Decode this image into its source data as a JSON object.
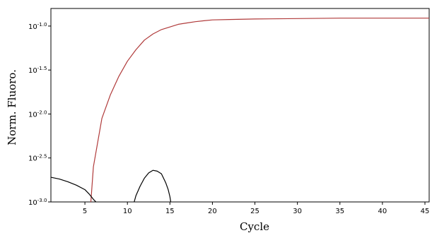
{
  "chart_data": {
    "type": "line",
    "title": "",
    "xlabel": "Cycle",
    "ylabel": "Norm. Fluoro.",
    "xlim": [
      1,
      45.5
    ],
    "ylim": [
      -3.0,
      -0.8
    ],
    "y_scale": "log10",
    "x_ticks": [
      5,
      10,
      15,
      20,
      25,
      30,
      35,
      40,
      45
    ],
    "y_ticks": [
      {
        "value": -1.0,
        "base": "10",
        "exp": "-1.0"
      },
      {
        "value": -1.5,
        "base": "10",
        "exp": "-1.5"
      },
      {
        "value": -2.0,
        "base": "10",
        "exp": "-2.0"
      },
      {
        "value": -2.5,
        "base": "10",
        "exp": "-2.5"
      },
      {
        "value": -3.0,
        "base": "10",
        "exp": "-3.0"
      }
    ],
    "grid": false,
    "legend": false,
    "series": [
      {
        "color": "#b03a3a",
        "points": [
          [
            5.7,
            -3.0
          ],
          [
            6,
            -2.6
          ],
          [
            7,
            -2.05
          ],
          [
            8,
            -1.78
          ],
          [
            9,
            -1.57
          ],
          [
            10,
            -1.4
          ],
          [
            11,
            -1.27
          ],
          [
            12,
            -1.16
          ],
          [
            13,
            -1.09
          ],
          [
            14,
            -1.04
          ],
          [
            15,
            -1.01
          ],
          [
            16,
            -0.98
          ],
          [
            17,
            -0.965
          ],
          [
            18,
            -0.95
          ],
          [
            19,
            -0.94
          ],
          [
            20,
            -0.93
          ],
          [
            22,
            -0.925
          ],
          [
            25,
            -0.92
          ],
          [
            30,
            -0.915
          ],
          [
            35,
            -0.91
          ],
          [
            40,
            -0.91
          ],
          [
            45.5,
            -0.91
          ]
        ]
      },
      {
        "color": "#000000",
        "points": [
          [
            1,
            -2.72
          ],
          [
            2,
            -2.74
          ],
          [
            3,
            -2.77
          ],
          [
            4,
            -2.81
          ],
          [
            5,
            -2.86
          ],
          [
            5.5,
            -2.91
          ],
          [
            6,
            -2.97
          ],
          [
            6.3,
            -3.0
          ]
        ]
      },
      {
        "color": "#000000",
        "points": [
          [
            10.8,
            -3.0
          ],
          [
            11,
            -2.93
          ],
          [
            11.5,
            -2.82
          ],
          [
            12,
            -2.73
          ],
          [
            12.5,
            -2.67
          ],
          [
            13,
            -2.64
          ],
          [
            13.5,
            -2.65
          ],
          [
            14,
            -2.68
          ],
          [
            14.5,
            -2.78
          ],
          [
            14.8,
            -2.86
          ],
          [
            15,
            -2.94
          ],
          [
            15.1,
            -3.0
          ]
        ]
      }
    ]
  }
}
